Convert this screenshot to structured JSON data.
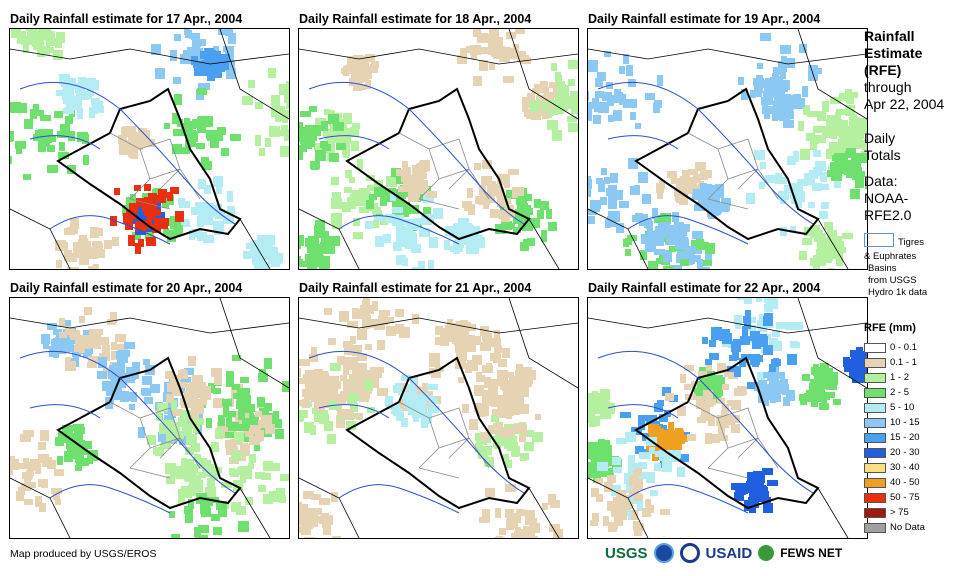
{
  "panels": [
    {
      "title": "Daily Rainfall estimate for 17 Apr., 2004",
      "variant": 0
    },
    {
      "title": "Daily Rainfall estimate for 18 Apr., 2004",
      "variant": 1
    },
    {
      "title": "Daily Rainfall estimate for 19 Apr., 2004",
      "variant": 2
    },
    {
      "title": "Daily Rainfall estimate for 20 Apr., 2004",
      "variant": 3
    },
    {
      "title": "Daily Rainfall estimate for 21 Apr., 2004",
      "variant": 4
    },
    {
      "title": "Daily Rainfall estimate for 22 Apr., 2004",
      "variant": 5
    }
  ],
  "side": {
    "title_lines": [
      "Rainfall",
      "Estimate",
      "(RFE)"
    ],
    "through": "through",
    "date": "Apr 22, 2004",
    "daily": "Daily",
    "totals": "Totals",
    "data_label": "Data:",
    "data_src1": "NOAA-",
    "data_src2": "RFE2.0",
    "basin_label": "Tigres",
    "basin_line2": "& Euphrates",
    "basin_line3": "Basins",
    "basin_line4": "from USGS",
    "basin_line5": "Hydro 1k data",
    "rfe_title": "RFE (mm)"
  },
  "legend": [
    {
      "label": "0 - 0.1",
      "color": "#ffffff"
    },
    {
      "label": "0.1 - 1",
      "color": "#e6d3b3"
    },
    {
      "label": "1 - 2",
      "color": "#b4f0a0"
    },
    {
      "label": "2 - 5",
      "color": "#6ee06e"
    },
    {
      "label": "5 - 10",
      "color": "#b4ecf4"
    },
    {
      "label": "10 - 15",
      "color": "#8cc8f4"
    },
    {
      "label": "15 - 20",
      "color": "#4aa0f0"
    },
    {
      "label": "20 - 30",
      "color": "#2060e0"
    },
    {
      "label": "30 - 40",
      "color": "#f8e080"
    },
    {
      "label": "40 - 50",
      "color": "#f0a020"
    },
    {
      "label": "50 - 75",
      "color": "#e83010"
    },
    {
      "label": "> 75",
      "color": "#a01810"
    },
    {
      "label": "No Data",
      "color": "#a0a0a0"
    }
  ],
  "footer": {
    "credit": "Map produced by USGS/EROS"
  },
  "logos": {
    "usgs": "USGS",
    "usaid": "USAID",
    "fews": "FEWS NET"
  }
}
